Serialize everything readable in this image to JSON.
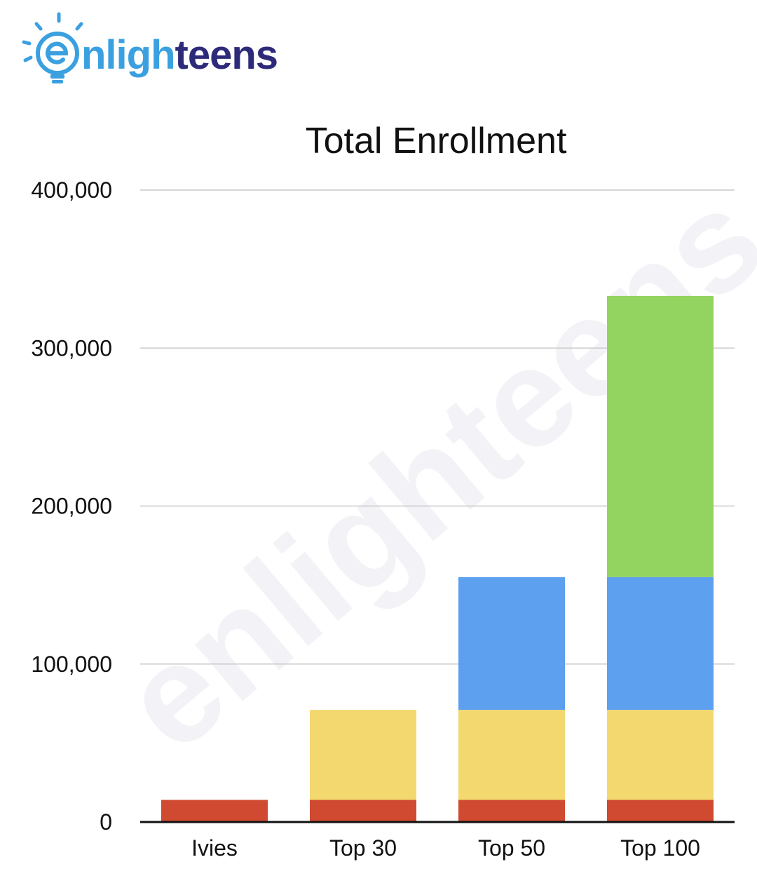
{
  "logo": {
    "text": "enlighteens",
    "colors": {
      "blue": "#3aa0e0",
      "navy": "#2e2a7a"
    }
  },
  "watermark": {
    "text": "enlighteens"
  },
  "chart_data": {
    "type": "bar",
    "stacked": true,
    "title": "Total Enrollment",
    "xlabel": "",
    "ylabel": "",
    "categories": [
      "Ivies",
      "Top 30",
      "Top 50",
      "Top 100"
    ],
    "ylim": [
      0,
      400000
    ],
    "yticks": [
      0,
      100000,
      200000,
      300000,
      400000
    ],
    "ytick_labels": [
      "0",
      "100,000",
      "200,000",
      "300,000",
      "400,000"
    ],
    "grid": true,
    "legend": "none",
    "series": [
      {
        "color": "#cf4a31",
        "values": [
          14000,
          14000,
          14000,
          14000
        ]
      },
      {
        "color": "#f2d86f",
        "values": [
          0,
          57000,
          57000,
          57000
        ]
      },
      {
        "color": "#5ca0ef",
        "values": [
          0,
          0,
          84000,
          84000
        ]
      },
      {
        "color": "#93d35f",
        "values": [
          0,
          0,
          0,
          178000
        ]
      }
    ]
  }
}
